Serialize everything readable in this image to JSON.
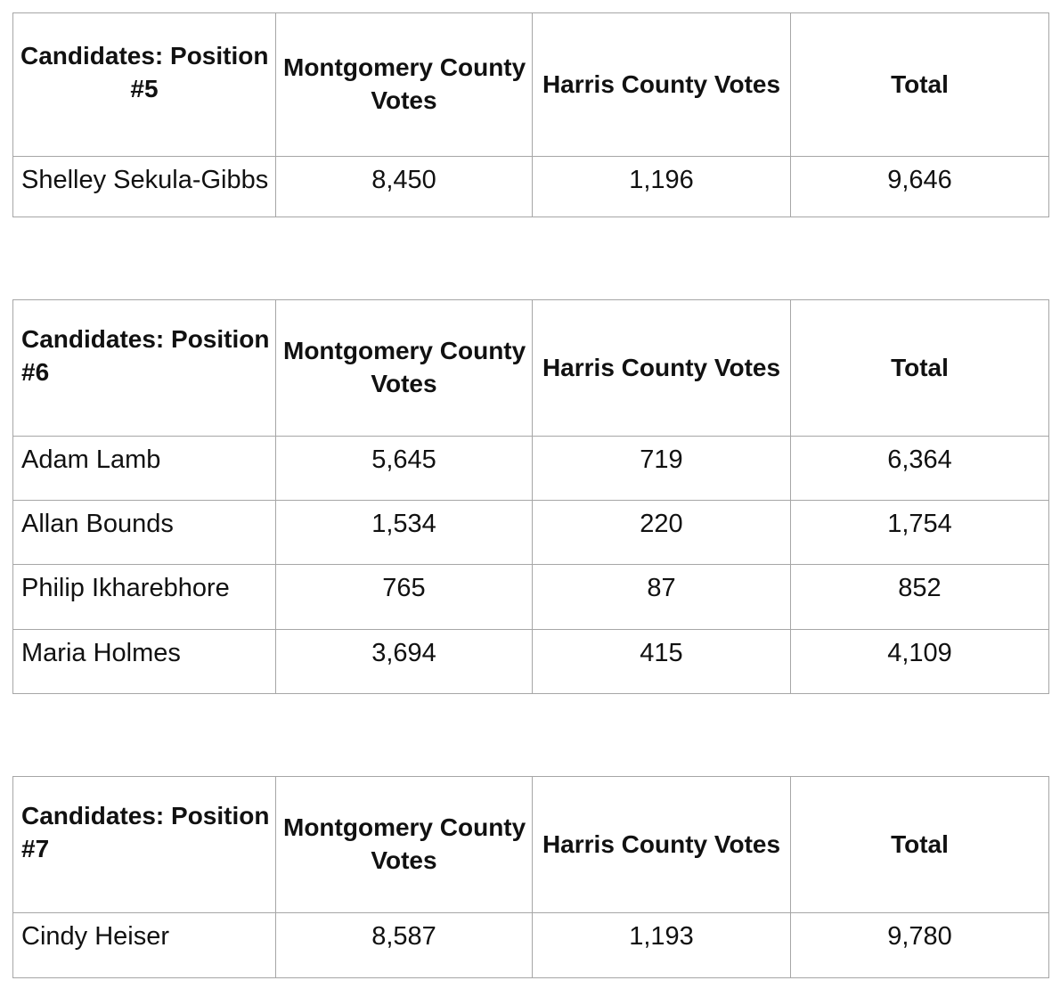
{
  "styles": {
    "background": "#ffffff",
    "border_color": "#a6a6a6",
    "text_color": "#111111"
  },
  "tables": [
    {
      "header": {
        "title_lines": [
          "Candidates: Position",
          "#5"
        ],
        "title_align": "center",
        "cols": [
          {
            "lines": [
              "Montgomery County",
              "Votes"
            ]
          },
          {
            "lines": [
              "Harris County Votes"
            ]
          },
          {
            "lines": [
              "Total"
            ]
          }
        ]
      },
      "rows": [
        {
          "candidate": "Shelley Sekula-Gibbs",
          "values": [
            "8,450",
            "1,196",
            "9,646"
          ]
        }
      ]
    },
    {
      "header": {
        "title_lines": [
          "Candidates: Position",
          "#6"
        ],
        "title_align": "left",
        "cols": [
          {
            "lines": [
              "Montgomery County",
              "Votes"
            ]
          },
          {
            "lines": [
              "Harris County Votes"
            ]
          },
          {
            "lines": [
              "Total"
            ]
          }
        ]
      },
      "rows": [
        {
          "candidate": "Adam Lamb",
          "values": [
            "5,645",
            "719",
            "6,364"
          ]
        },
        {
          "candidate": "Allan Bounds",
          "values": [
            "1,534",
            "220",
            "1,754"
          ]
        },
        {
          "candidate": "Philip Ikharebhore",
          "values": [
            "765",
            "87",
            "852"
          ]
        },
        {
          "candidate": "Maria Holmes",
          "values": [
            "3,694",
            "415",
            "4,109"
          ]
        }
      ]
    },
    {
      "header": {
        "title_lines": [
          "Candidates: Position",
          "#7"
        ],
        "title_align": "left",
        "cols": [
          {
            "lines": [
              "Montgomery County",
              "Votes"
            ]
          },
          {
            "lines": [
              "Harris County Votes"
            ]
          },
          {
            "lines": [
              "Total"
            ]
          }
        ]
      },
      "rows": [
        {
          "candidate": "Cindy Heiser",
          "values": [
            "8,587",
            "1,193",
            "9,780"
          ]
        }
      ]
    }
  ]
}
